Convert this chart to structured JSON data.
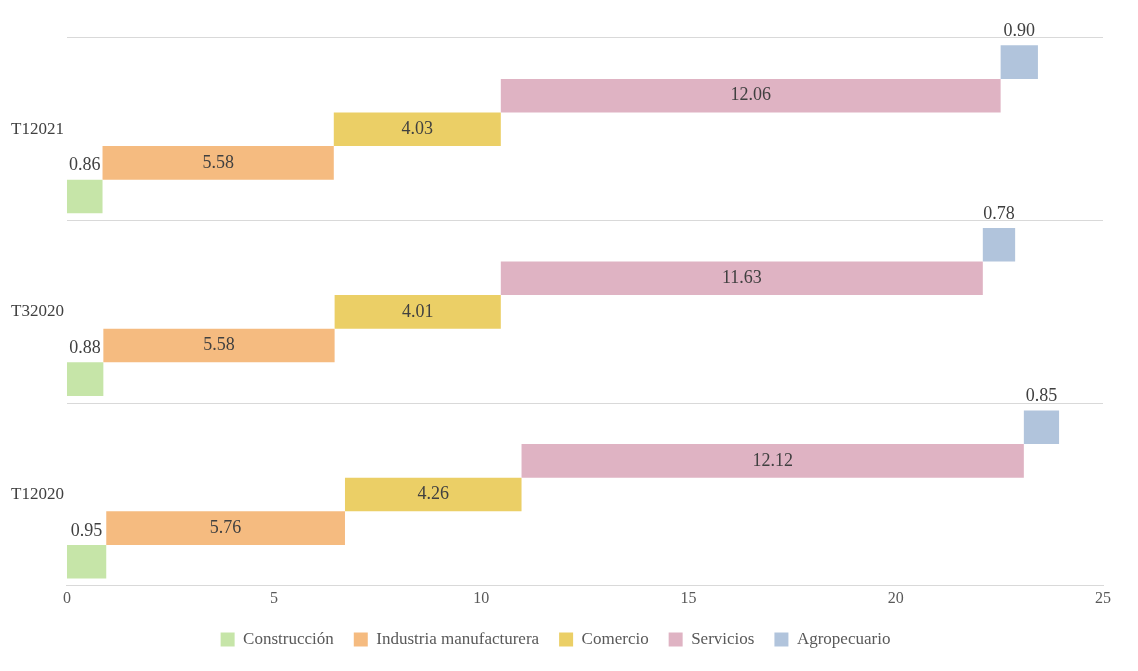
{
  "chart_data": {
    "type": "bar",
    "orientation": "horizontal",
    "categories": [
      "T12021",
      "T32020",
      "T12020"
    ],
    "series": [
      {
        "name": "Construcción",
        "color": "#c6e5a8",
        "values": [
          0.86,
          0.88,
          0.95
        ],
        "base": [
          0,
          0,
          0
        ],
        "value_labels": [
          "0.86",
          "0.88",
          "0.95"
        ]
      },
      {
        "name": "Industria manufacturera",
        "color": "#f5bb80",
        "values": [
          5.58,
          5.58,
          5.76
        ],
        "base": [
          0.86,
          0.88,
          0.95
        ],
        "value_labels": [
          "5.58",
          "5.58",
          "5.76"
        ]
      },
      {
        "name": "Comercio",
        "color": "#ebcf66",
        "values": [
          4.03,
          4.01,
          4.26
        ],
        "base": [
          6.44,
          6.46,
          6.71
        ],
        "value_labels": [
          "4.03",
          "4.01",
          "4.26"
        ]
      },
      {
        "name": "Servicios",
        "color": "#dfb3c3",
        "values": [
          12.06,
          11.63,
          12.12
        ],
        "base": [
          10.47,
          10.47,
          10.97
        ],
        "value_labels": [
          "12.06",
          "11.63",
          "12.12"
        ]
      },
      {
        "name": "Agropecuario",
        "color": "#b1c4dc",
        "values": [
          0.9,
          0.78,
          0.85
        ],
        "base": [
          22.53,
          22.1,
          23.09
        ],
        "value_labels": [
          "0.90",
          "0.78",
          "0.85"
        ]
      }
    ],
    "xlim": [
      0,
      25
    ],
    "xticks": [
      0,
      5,
      10,
      15,
      20,
      25
    ],
    "grid": "y",
    "legend": "bottom"
  }
}
